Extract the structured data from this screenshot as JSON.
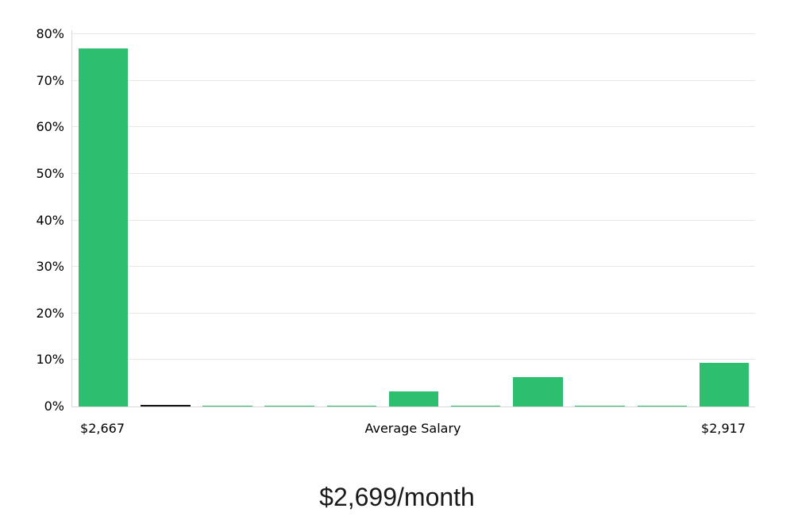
{
  "chart_data": {
    "type": "bar",
    "title": "$2,699/month",
    "xlabel": "",
    "ylabel": "",
    "ylim": [
      0,
      80
    ],
    "grid": true,
    "legend": "none",
    "accent_color": "#2dbe6f",
    "marker_color": "#111111",
    "y_ticks": [
      {
        "value": 0,
        "label": "0%"
      },
      {
        "value": 10,
        "label": "10%"
      },
      {
        "value": 20,
        "label": "20%"
      },
      {
        "value": 30,
        "label": "30%"
      },
      {
        "value": 40,
        "label": "40%"
      },
      {
        "value": 50,
        "label": "50%"
      },
      {
        "value": 60,
        "label": "60%"
      },
      {
        "value": 70,
        "label": "70%"
      },
      {
        "value": 80,
        "label": "80%"
      }
    ],
    "x_labels": {
      "left": "$2,667",
      "center": "Average Salary",
      "right": "$2,917"
    },
    "bars": [
      {
        "value": 76.9,
        "color": "#2dbe6f"
      },
      {
        "value": 0.35,
        "color": "#111111"
      },
      {
        "value": 0.25,
        "color": "#2dbe6f"
      },
      {
        "value": 0.25,
        "color": "#2dbe6f"
      },
      {
        "value": 0.25,
        "color": "#2dbe6f"
      },
      {
        "value": 3.2,
        "color": "#2dbe6f"
      },
      {
        "value": 0.25,
        "color": "#2dbe6f"
      },
      {
        "value": 6.3,
        "color": "#2dbe6f"
      },
      {
        "value": 0.25,
        "color": "#2dbe6f"
      },
      {
        "value": 0.25,
        "color": "#2dbe6f"
      },
      {
        "value": 9.4,
        "color": "#2dbe6f"
      }
    ]
  }
}
